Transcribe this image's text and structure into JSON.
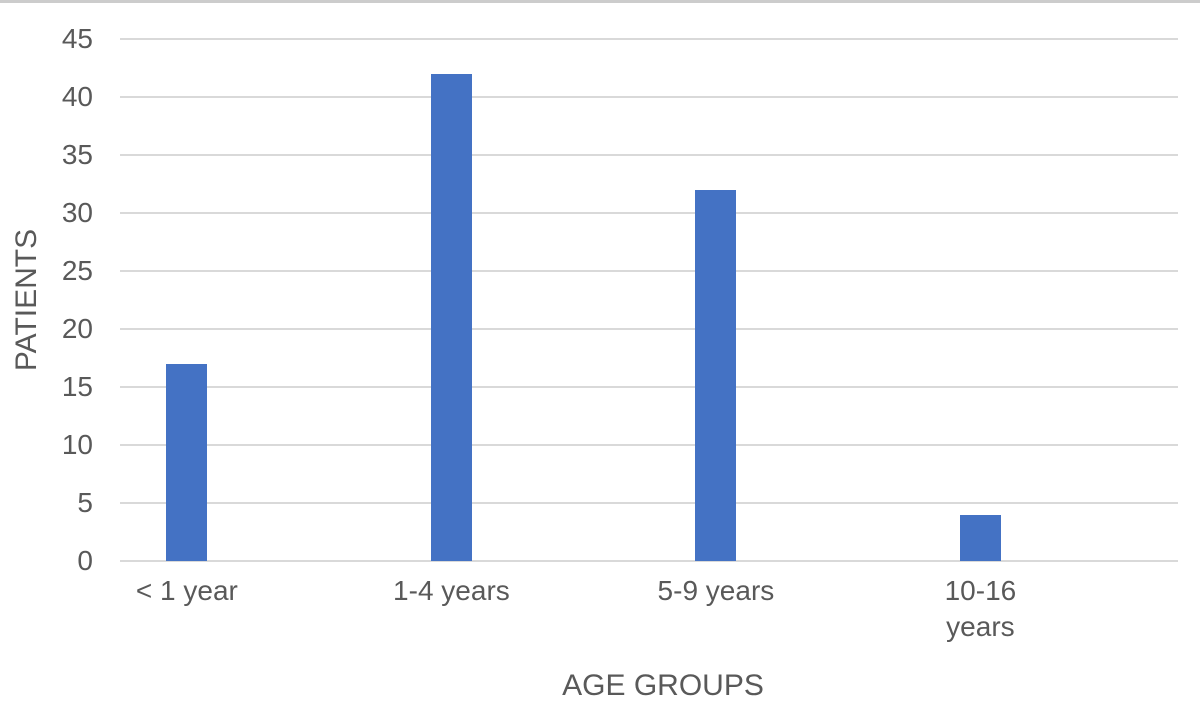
{
  "chart_data": {
    "type": "bar",
    "title": "",
    "categories": [
      "< 1 year",
      "1-4 years",
      "5-9 years",
      "10-16 years"
    ],
    "x_tick_lines": [
      [
        "< 1 year"
      ],
      [
        "1-4 years"
      ],
      [
        "5-9 years"
      ],
      [
        "10-16",
        "years"
      ]
    ],
    "values": [
      17,
      42,
      32,
      4
    ],
    "series_name": "PATIENTS",
    "xlabel": "AGE GROUPS",
    "ylabel": "PATIENTS",
    "ylim": [
      0,
      45
    ],
    "y_ticks": [
      0,
      5,
      10,
      15,
      20,
      25,
      30,
      35,
      40,
      45
    ],
    "grid": "horizontal",
    "legend": "none",
    "bar_color": "#4472C4",
    "gridline_color": "#D9D9D9",
    "text_color": "#595959"
  }
}
